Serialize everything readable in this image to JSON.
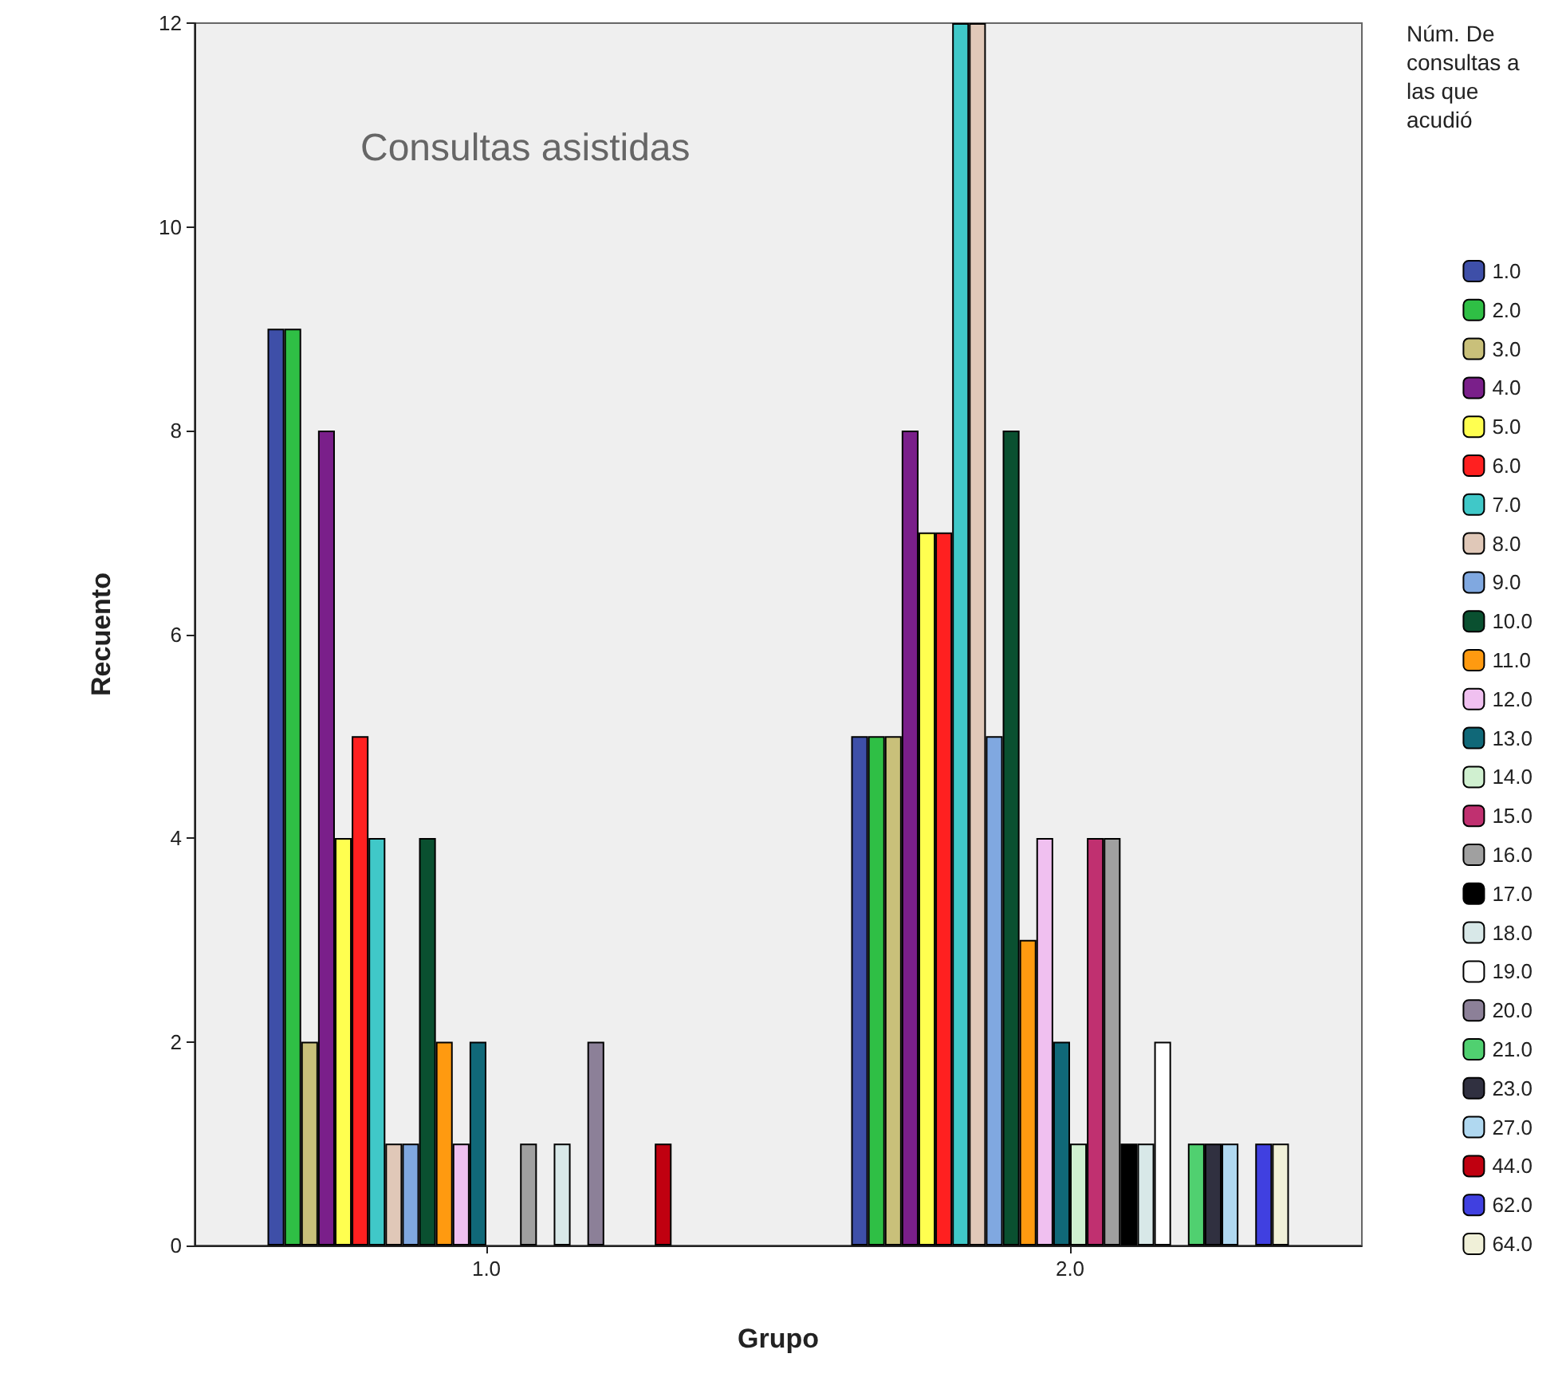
{
  "chart_data": {
    "type": "bar",
    "title": "Consultas asistidas",
    "xlabel": "Grupo",
    "ylabel": "Recuento",
    "legend_title": "Núm. De consultas a las que acudió",
    "categories": [
      "1.0",
      "2.0"
    ],
    "ylim": [
      0,
      12
    ],
    "yticks": [
      0,
      2,
      4,
      6,
      8,
      10,
      12
    ],
    "grid": false,
    "legend": "right",
    "series": [
      {
        "name": "1.0",
        "color": "#3e4fa8",
        "values": [
          9,
          5
        ]
      },
      {
        "name": "2.0",
        "color": "#2fbf45",
        "values": [
          9,
          5
        ]
      },
      {
        "name": "3.0",
        "color": "#c9c07a",
        "values": [
          2,
          5
        ]
      },
      {
        "name": "4.0",
        "color": "#7a1f8a",
        "values": [
          8,
          8
        ]
      },
      {
        "name": "5.0",
        "color": "#ffff50",
        "values": [
          4,
          7
        ]
      },
      {
        "name": "6.0",
        "color": "#ff2020",
        "values": [
          5,
          7
        ]
      },
      {
        "name": "7.0",
        "color": "#40c8c8",
        "values": [
          4,
          12
        ]
      },
      {
        "name": "8.0",
        "color": "#e0c8b8",
        "values": [
          1,
          12
        ]
      },
      {
        "name": "9.0",
        "color": "#80a8e0",
        "values": [
          1,
          5
        ]
      },
      {
        "name": "10.0",
        "color": "#0a5030",
        "values": [
          4,
          8
        ]
      },
      {
        "name": "11.0",
        "color": "#ff9a10",
        "values": [
          2,
          3
        ]
      },
      {
        "name": "12.0",
        "color": "#f0c0f0",
        "values": [
          1,
          4
        ]
      },
      {
        "name": "13.0",
        "color": "#106878",
        "values": [
          2,
          2
        ]
      },
      {
        "name": "14.0",
        "color": "#d0f0d0",
        "values": [
          null,
          1
        ]
      },
      {
        "name": "15.0",
        "color": "#c03070",
        "values": [
          null,
          4
        ]
      },
      {
        "name": "16.0",
        "color": "#a0a0a0",
        "values": [
          1,
          4
        ]
      },
      {
        "name": "17.0",
        "color": "#000000",
        "values": [
          null,
          1
        ]
      },
      {
        "name": "18.0",
        "color": "#d8e8e8",
        "values": [
          1,
          1
        ]
      },
      {
        "name": "19.0",
        "color": "#ffffff",
        "values": [
          null,
          2
        ]
      },
      {
        "name": "20.0",
        "color": "#8c8098",
        "values": [
          2,
          null
        ]
      },
      {
        "name": "21.0",
        "color": "#50d070",
        "values": [
          null,
          1
        ]
      },
      {
        "name": "23.0",
        "color": "#303040",
        "values": [
          null,
          1
        ]
      },
      {
        "name": "27.0",
        "color": "#b0d8f0",
        "values": [
          null,
          1
        ]
      },
      {
        "name": "44.0",
        "color": "#c00010",
        "values": [
          1,
          null
        ]
      },
      {
        "name": "62.0",
        "color": "#4040e0",
        "values": [
          null,
          1
        ]
      },
      {
        "name": "64.0",
        "color": "#f0f0d8",
        "values": [
          null,
          1
        ]
      }
    ]
  }
}
